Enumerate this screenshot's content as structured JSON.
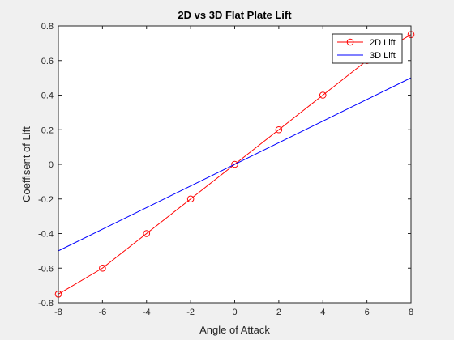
{
  "chart_data": {
    "type": "line",
    "title": "2D vs 3D Flat Plate Lift",
    "xlabel": "Angle of Attack",
    "ylabel": "Coeffisent of Lift",
    "xlim": [
      -8,
      8
    ],
    "ylim": [
      -0.8,
      0.8
    ],
    "xticks": [
      -8,
      -6,
      -4,
      -2,
      0,
      2,
      4,
      6,
      8
    ],
    "yticks": [
      -0.8,
      -0.6,
      -0.4,
      -0.2,
      0,
      0.2,
      0.4,
      0.6,
      0.8
    ],
    "xtick_labels": [
      "-8",
      "-6",
      "-4",
      "-2",
      "0",
      "2",
      "4",
      "6",
      "8"
    ],
    "ytick_labels": [
      "-0.8",
      "-0.6",
      "-0.4",
      "-0.2",
      "0",
      "0.2",
      "0.4",
      "0.6",
      "0.8"
    ],
    "grid": false,
    "legend_position": "top-right",
    "series": [
      {
        "name": "2D Lift",
        "color": "#ff0000",
        "marker": "circle",
        "x": [
          -8,
          -6,
          -4,
          -2,
          0,
          2,
          4,
          6,
          8
        ],
        "y": [
          -0.75,
          -0.6,
          -0.4,
          -0.2,
          0,
          0.2,
          0.4,
          0.6,
          0.75
        ]
      },
      {
        "name": "3D Lift",
        "color": "#0000ff",
        "marker": "none",
        "x": [
          -8,
          8
        ],
        "y": [
          -0.5,
          0.5
        ]
      }
    ]
  }
}
